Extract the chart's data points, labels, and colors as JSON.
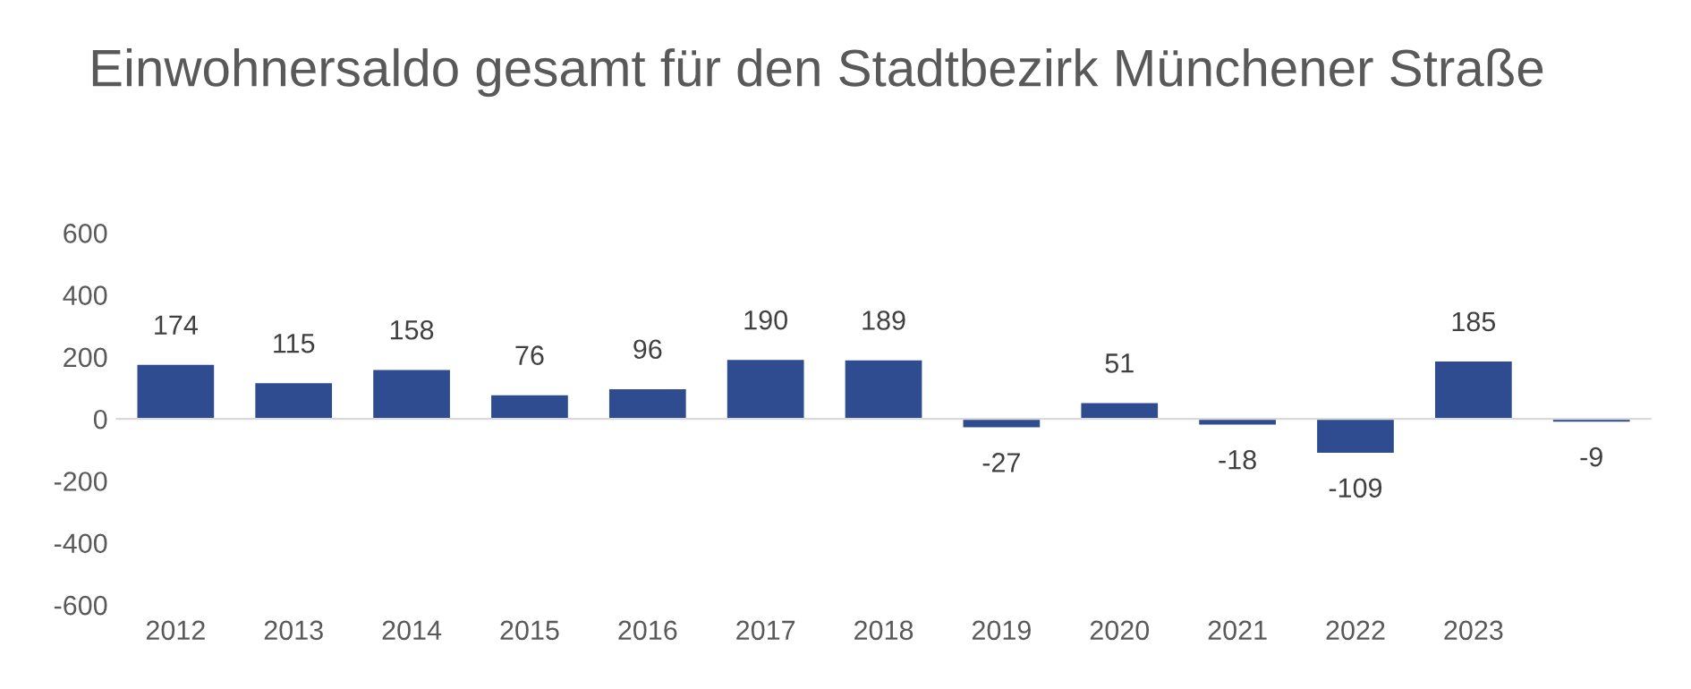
{
  "chart_data": {
    "type": "bar",
    "title": "Einwohnersaldo gesamt für den Stadtbezirk Münchener Straße",
    "categories": [
      "2012",
      "2013",
      "2014",
      "2015",
      "2016",
      "2017",
      "2018",
      "2019",
      "2020",
      "2021",
      "2022",
      "2023",
      null
    ],
    "values": [
      174,
      115,
      158,
      76,
      96,
      190,
      189,
      -27,
      51,
      -18,
      -109,
      185,
      -9
    ],
    "color": "#2e4c8f",
    "ylim": [
      -600,
      600
    ],
    "yticks": [
      -600,
      -400,
      -200,
      0,
      200,
      400,
      600
    ],
    "data_labels": true
  }
}
